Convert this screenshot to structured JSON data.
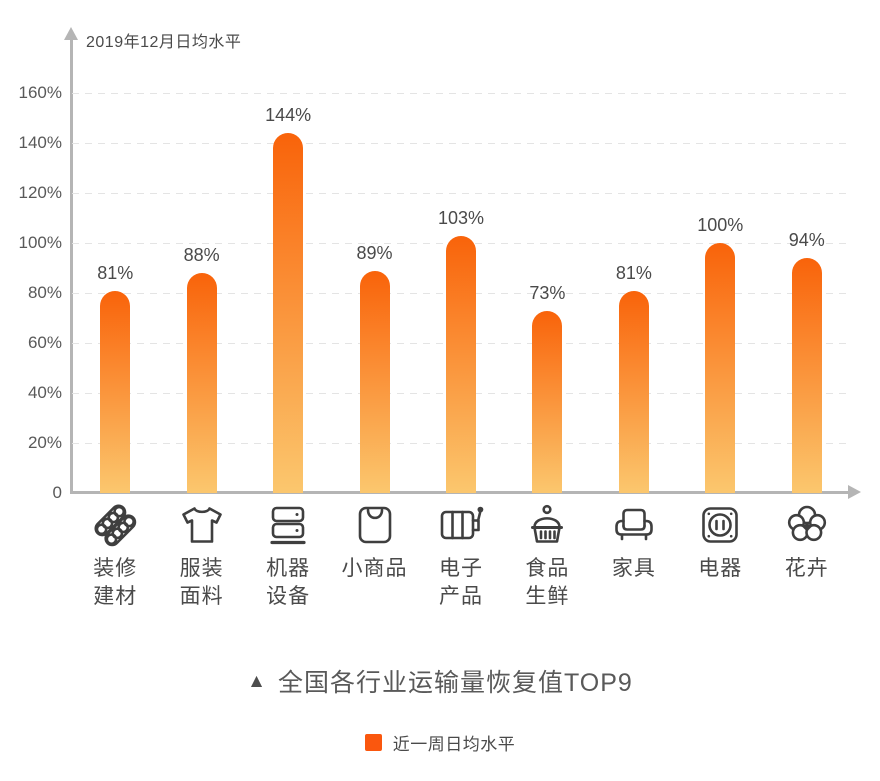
{
  "chart_data": {
    "type": "bar",
    "title": "全国各行业运输量恢复值TOP9",
    "title_marker": "▲",
    "y_axis_label": "2019年12月日均水平",
    "y_ticks": [
      "160%",
      "140%",
      "120%",
      "100%",
      "80%",
      "60%",
      "40%",
      "20%",
      "0"
    ],
    "ylim": [
      0,
      160
    ],
    "grid": "horizontal-dashed",
    "legend": {
      "label": "近一周日均水平",
      "color": "#fa570e",
      "position": "bottom-center"
    },
    "bar_gradient": {
      "top": "#f9630a",
      "bottom": "#fbc76e"
    },
    "categories": [
      {
        "label_lines": [
          "装修",
          "建材"
        ],
        "icon": "pipes-icon"
      },
      {
        "label_lines": [
          "服装",
          "面料"
        ],
        "icon": "tshirt-icon"
      },
      {
        "label_lines": [
          "机器",
          "设备"
        ],
        "icon": "machines-icon"
      },
      {
        "label_lines": [
          "小商品"
        ],
        "icon": "shopping-bag-icon"
      },
      {
        "label_lines": [
          "电子",
          "产品"
        ],
        "icon": "machine-lever-icon"
      },
      {
        "label_lines": [
          "食品",
          "生鲜"
        ],
        "icon": "food-basket-icon"
      },
      {
        "label_lines": [
          "家具"
        ],
        "icon": "armchair-icon"
      },
      {
        "label_lines": [
          "电器"
        ],
        "icon": "power-socket-icon"
      },
      {
        "label_lines": [
          "花卉"
        ],
        "icon": "flower-icon"
      }
    ],
    "series": [
      {
        "name": "近一周日均水平",
        "values": [
          81,
          88,
          144,
          89,
          103,
          73,
          81,
          100,
          94
        ]
      }
    ],
    "value_labels": [
      "81%",
      "88%",
      "144%",
      "89%",
      "103%",
      "73%",
      "81%",
      "100%",
      "94%"
    ]
  }
}
